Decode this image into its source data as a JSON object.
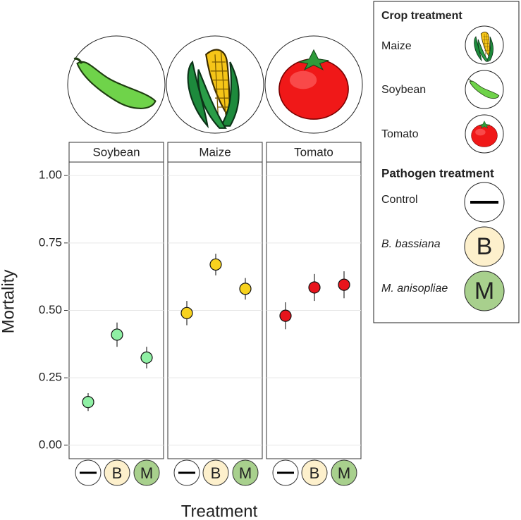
{
  "chart_data": {
    "type": "errorpoint",
    "y_label": "Mortality",
    "x_label": "Treatment",
    "categories": [
      null,
      "B",
      "M"
    ],
    "category_colors": [
      "#ffffff",
      "#fdf0cc",
      "#a8d08d"
    ],
    "ylim": [
      -0.05,
      1.05
    ],
    "yticks": [
      {
        "value": 0,
        "label": "0.00"
      },
      {
        "value": 0.25,
        "label": "0.25"
      },
      {
        "value": 0.5,
        "label": "0.50"
      },
      {
        "value": 0.75,
        "label": "0.75"
      },
      {
        "value": 1,
        "label": "1.00"
      }
    ],
    "grid": true,
    "facets": [
      {
        "name": "Soybean",
        "color": "#8ff0a4",
        "values": [
          0.16,
          0.41,
          0.325
        ],
        "errors": [
          0.033,
          0.045,
          0.04
        ]
      },
      {
        "name": "Maize",
        "color": "#f7d21e",
        "values": [
          0.49,
          0.67,
          0.58
        ],
        "errors": [
          0.045,
          0.04,
          0.04
        ]
      },
      {
        "name": "Tomato",
        "color": "#e8141c",
        "values": [
          0.48,
          0.585,
          0.595
        ],
        "errors": [
          0.05,
          0.05,
          0.05
        ]
      }
    ],
    "legend": {
      "crop_title": "Crop treatment",
      "crops": [
        "Maize",
        "Soybean",
        "Tomato"
      ],
      "pathogen_title": "Pathogen treatment",
      "pathogens": [
        "Control",
        "B. bassiana",
        "M. anisopliae"
      ]
    }
  }
}
